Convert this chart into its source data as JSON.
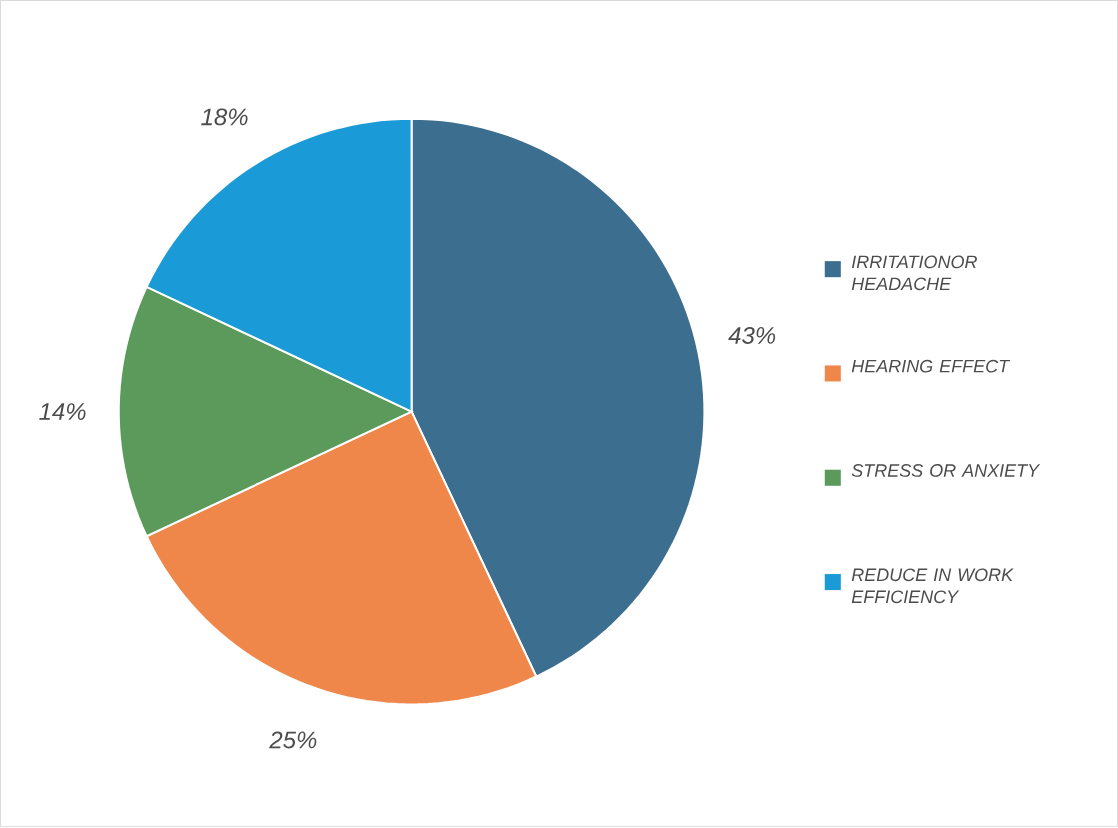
{
  "chart_data": {
    "type": "pie",
    "categories": [
      "IRRITATIONOR HEADACHE",
      "HEARING EFFECT",
      "STRESS OR ANXIETY",
      "REDUCE IN WORK EFFICIENCY"
    ],
    "values": [
      43,
      25,
      14,
      18
    ],
    "value_labels": [
      "43%",
      "25%",
      "14%",
      "18%"
    ],
    "colors": [
      "#3b6e8f",
      "#f0874a",
      "#5b9a5b",
      "#1a9ad6"
    ],
    "legend": "right"
  }
}
